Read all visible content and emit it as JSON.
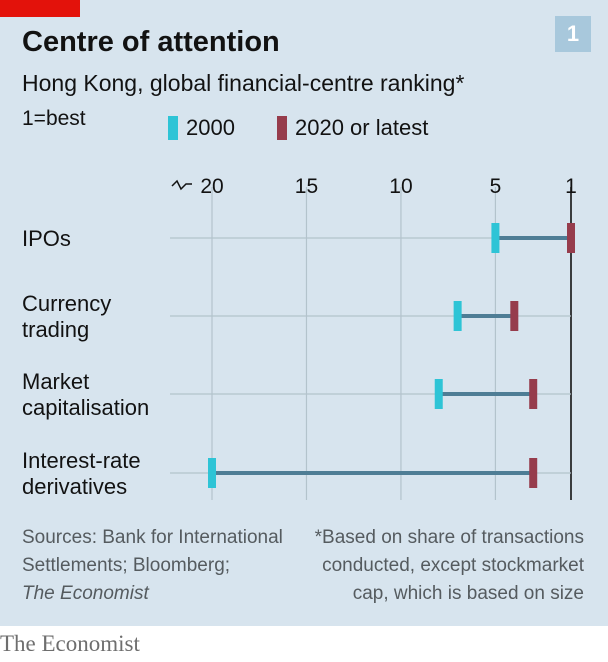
{
  "header": {
    "chart_number": "1",
    "title": "Centre of attention",
    "subtitle": "Hong Kong, global financial-centre ranking*",
    "scale_note": "1=best"
  },
  "legend": [
    {
      "label": "2000",
      "color": "#2ec4d6"
    },
    {
      "label": "2020 or latest",
      "color": "#963c4c"
    }
  ],
  "colors": {
    "panel": "#d7e4ee",
    "connector": "#4e7d95",
    "grid": "#b3c3cc",
    "accent_red": "#e3120b"
  },
  "chart_data": {
    "type": "dumbbell",
    "title": "Centre of attention",
    "subtitle": "Hong Kong, global financial-centre ranking*",
    "x_axis": {
      "ticks": [
        20,
        15,
        10,
        5,
        1
      ],
      "tick_labels": [
        "20",
        "15",
        "10",
        "5",
        "1"
      ],
      "range": [
        20,
        1
      ],
      "axis_break": true,
      "reversed": true
    },
    "categories": [
      {
        "label_lines": [
          "IPOs"
        ],
        "start": 5,
        "end": 1
      },
      {
        "label_lines": [
          "Currency",
          "trading"
        ],
        "start": 7,
        "end": 4
      },
      {
        "label_lines": [
          "Market",
          "capitalisation"
        ],
        "start": 8,
        "end": 3
      },
      {
        "label_lines": [
          "Interest-rate",
          "derivatives"
        ],
        "start": 20,
        "end": 3
      }
    ],
    "series": [
      {
        "name": "2000",
        "field": "start"
      },
      {
        "name": "2020 or latest",
        "field": "end"
      }
    ],
    "grid": true
  },
  "footer": {
    "sources_line1": "Sources: Bank for International",
    "sources_line2": "Settlements; Bloomberg;",
    "sources_line3": "The Economist",
    "footnote_line1": "*Based on share of transactions",
    "footnote_line2": "conducted, except stockmarket",
    "footnote_line3": "cap, which is based on size",
    "logo": "The Economist"
  }
}
